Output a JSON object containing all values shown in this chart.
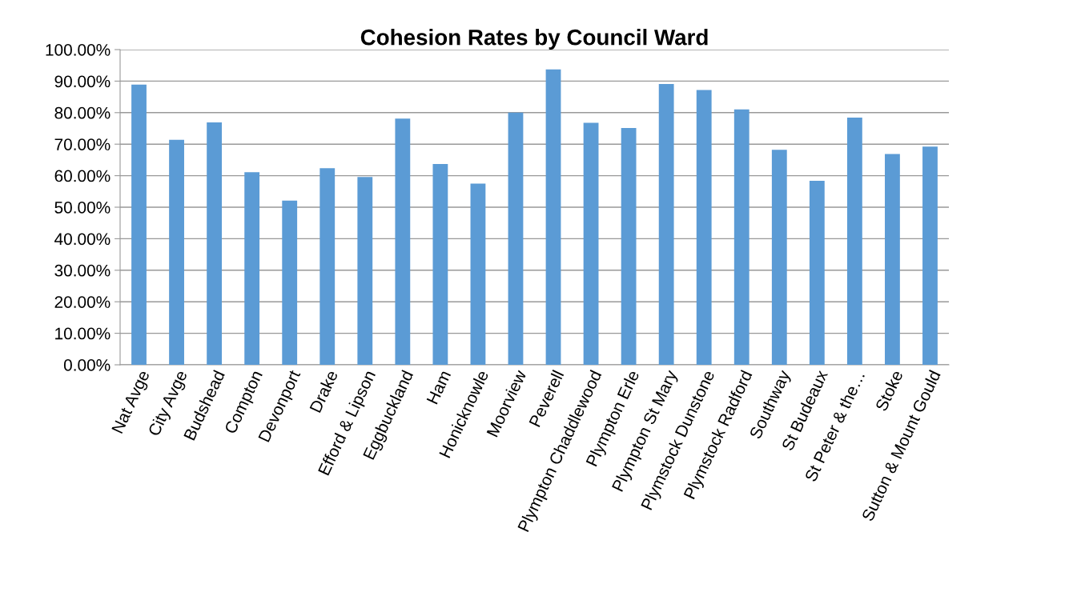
{
  "chart_data": {
    "type": "bar",
    "title": "Cohesion Rates by Council Ward",
    "categories": [
      "Nat Avge",
      "City Avge",
      "Budshead",
      "Compton",
      "Devonport",
      "Drake",
      "Efford & Lipson",
      "Eggbuckland",
      "Ham",
      "Honicknowle",
      "Moorview",
      "Peverell",
      "Plympton Chaddlewood",
      "Plympton Erle",
      "Plympton St Mary",
      "Plymstock Dunstone",
      "Plymstock Radford",
      "Southway",
      "St Budeaux",
      "St Peter & the…",
      "Stoke",
      "Sutton & Mount Gould"
    ],
    "values": [
      88.9,
      71.4,
      76.9,
      61.1,
      52.1,
      62.4,
      59.6,
      78.1,
      63.7,
      57.5,
      80.0,
      93.7,
      76.8,
      75.1,
      89.1,
      87.2,
      81.0,
      68.2,
      58.4,
      78.4,
      66.9,
      69.2
    ],
    "color": "#5b9bd5",
    "ylim": [
      0,
      100
    ],
    "yticks": [
      {
        "value": 0,
        "label": "0.00%"
      },
      {
        "value": 10,
        "label": "10.00%"
      },
      {
        "value": 20,
        "label": "20.00%"
      },
      {
        "value": 30,
        "label": "30.00%"
      },
      {
        "value": 40,
        "label": "40.00%"
      },
      {
        "value": 50,
        "label": "50.00%"
      },
      {
        "value": 60,
        "label": "60.00%"
      },
      {
        "value": 70,
        "label": "70.00%"
      },
      {
        "value": 80,
        "label": "80.00%"
      },
      {
        "value": 90,
        "label": "90.00%"
      },
      {
        "value": 100,
        "label": "100.00%"
      }
    ],
    "grid": "y"
  }
}
